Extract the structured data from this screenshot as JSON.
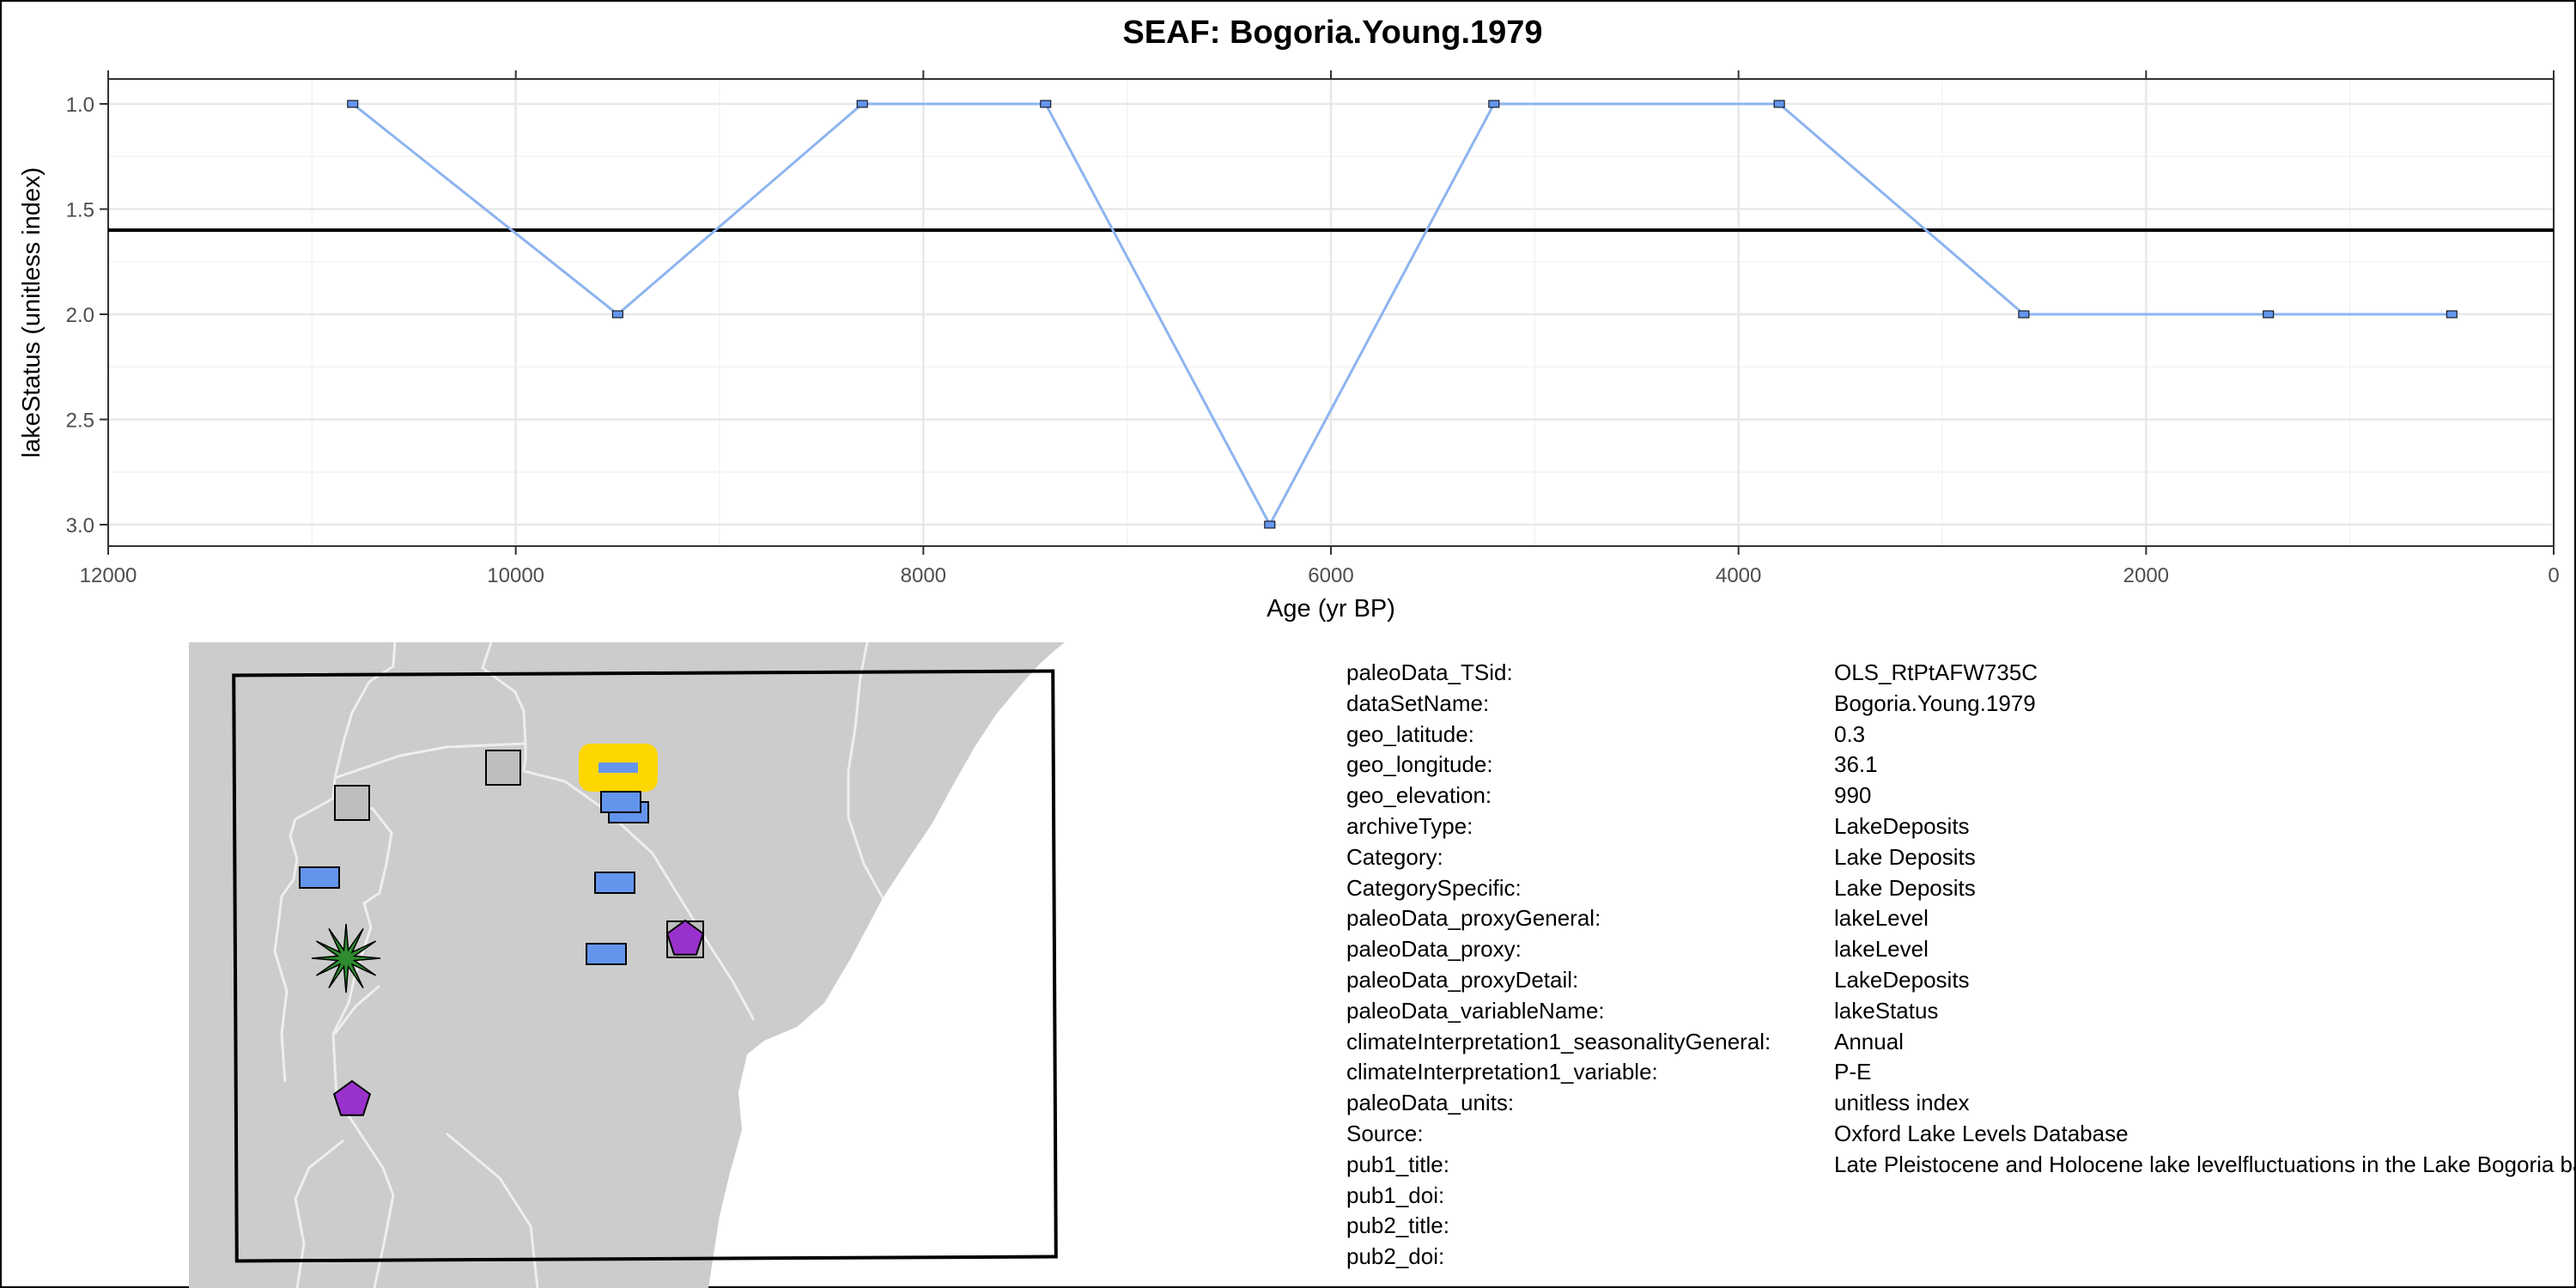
{
  "chart_data": {
    "type": "line",
    "title": "SEAF: Bogoria.Young.1979",
    "xlabel": "Age (yr BP)",
    "ylabel": "lakeStatus (unitless index)",
    "xlim": [
      12000,
      0
    ],
    "x_reversed": true,
    "ylim": [
      3.0,
      1.0
    ],
    "y_reversed": true,
    "x_ticks": [
      12000,
      10000,
      8000,
      6000,
      4000,
      2000,
      0
    ],
    "y_ticks": [
      1.0,
      1.5,
      2.0,
      2.5,
      3.0
    ],
    "y_tick_labels": [
      "1.0",
      "1.5",
      "2.0",
      "2.5",
      "3.0"
    ],
    "grid": true,
    "series": [
      {
        "x": [
          10800,
          9500,
          8300,
          7400,
          6300,
          5200,
          3800,
          2600,
          1400,
          500
        ],
        "y": [
          1,
          2,
          1,
          1,
          3,
          1,
          1,
          2,
          2,
          2
        ],
        "color": "#8DB4F0",
        "marker_color": "#6495ED"
      }
    ],
    "reference_line_y": 1.6,
    "reference_line_color": "#000000"
  },
  "map": {
    "land_color": "#CCCCCC",
    "border_color": "#EEEEEE",
    "highlight_color": "#FFD700",
    "markers": [
      {
        "type": "square",
        "color": "#BEBEBE"
      },
      {
        "type": "square",
        "color": "#BEBEBE"
      },
      {
        "type": "rect",
        "color": "#6495ED"
      },
      {
        "type": "rect",
        "color": "#6495ED"
      },
      {
        "type": "rect",
        "color": "#6495ED"
      },
      {
        "type": "rect",
        "color": "#6495ED"
      },
      {
        "type": "rect",
        "color": "#6495ED"
      },
      {
        "type": "rect",
        "color": "#6495ED"
      },
      {
        "type": "star",
        "color": "#2E8B2E"
      },
      {
        "type": "pentagon",
        "color": "#9932CC"
      },
      {
        "type": "pentagon",
        "color": "#9932CC"
      }
    ]
  },
  "metadata": [
    {
      "key": "paleoData_TSid:",
      "value": "OLS_RtPtAFW735C"
    },
    {
      "key": "dataSetName:",
      "value": "Bogoria.Young.1979"
    },
    {
      "key": "geo_latitude:",
      "value": "0.3"
    },
    {
      "key": "geo_longitude:",
      "value": "36.1"
    },
    {
      "key": "geo_elevation:",
      "value": "990"
    },
    {
      "key": "archiveType:",
      "value": "LakeDeposits"
    },
    {
      "key": "Category:",
      "value": "Lake Deposits"
    },
    {
      "key": "CategorySpecific:",
      "value": "Lake Deposits"
    },
    {
      "key": "paleoData_proxyGeneral:",
      "value": "lakeLevel"
    },
    {
      "key": "paleoData_proxy:",
      "value": "lakeLevel"
    },
    {
      "key": "paleoData_proxyDetail:",
      "value": "LakeDeposits"
    },
    {
      "key": "paleoData_variableName:",
      "value": "lakeStatus"
    },
    {
      "key": "climateInterpretation1_seasonalityGeneral:",
      "value": "Annual"
    },
    {
      "key": "climateInterpretation1_variable:",
      "value": "P-E"
    },
    {
      "key": "paleoData_units:",
      "value": "unitless index"
    },
    {
      "key": "Source:",
      "value": "Oxford Lake Levels Database"
    },
    {
      "key": "pub1_title:",
      "value": "Late Pleistocene and Holocene lake levelfluctuations in the Lake Bogoria basin"
    },
    {
      "key": "pub1_doi:",
      "value": ""
    },
    {
      "key": "pub2_title:",
      "value": ""
    },
    {
      "key": "pub2_doi:",
      "value": ""
    }
  ]
}
